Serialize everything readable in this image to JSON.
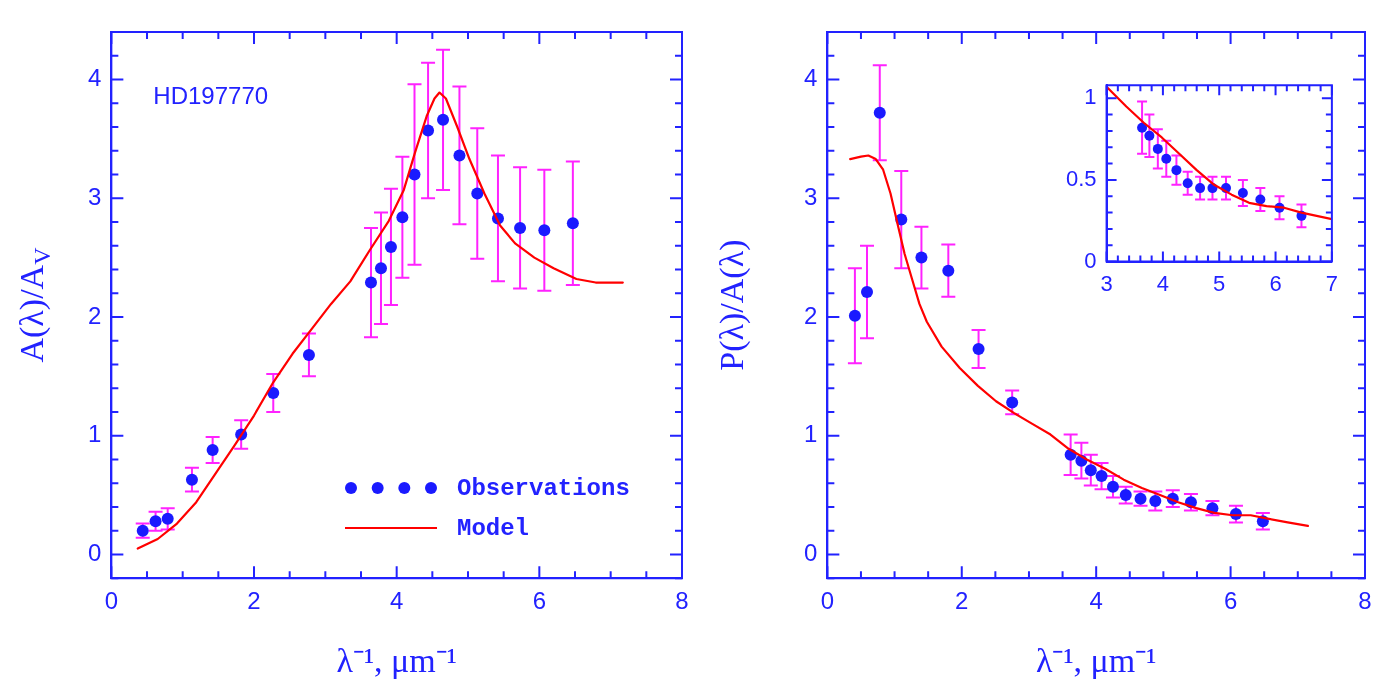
{
  "chart_data": [
    {
      "type": "scatter",
      "xlabel": "λ⁻¹, μm⁻¹",
      "ylabel": "A(λ)/A$_{V}$",
      "annotations": [
        "HD197770"
      ],
      "legend": "bottom right",
      "line_style": "solid",
      "xlim": [
        0,
        8
      ],
      "ylim": [
        -0.2,
        4.4
      ],
      "xticks": [
        0,
        {
          "value": 0.5,
          "label": null
        },
        {
          "value": 1,
          "label": null
        },
        {
          "value": 1.5,
          "label": null
        },
        2,
        {
          "value": 2.5,
          "label": null
        },
        {
          "value": 3,
          "label": null
        },
        {
          "value": 3.5,
          "label": null
        },
        4,
        {
          "value": 4.5,
          "label": null
        },
        {
          "value": 5,
          "label": null
        },
        {
          "value": 5.5,
          "label": null
        },
        6,
        {
          "value": 6.5,
          "label": null
        },
        {
          "value": 7,
          "label": null
        },
        {
          "value": 7.5,
          "label": null
        },
        8
      ],
      "yticks": [
        {
          "value": -0.2,
          "label": null
        },
        0,
        {
          "value": 0.2,
          "label": null
        },
        {
          "value": 0.4,
          "label": null
        },
        {
          "value": 0.6,
          "label": null
        },
        {
          "value": 0.8,
          "label": null
        },
        1,
        {
          "value": 1.2,
          "label": null
        },
        {
          "value": 1.4,
          "label": null
        },
        {
          "value": 1.6,
          "label": null
        },
        {
          "value": 1.8,
          "label": null
        },
        2,
        {
          "value": 2.2,
          "label": null
        },
        {
          "value": 2.4,
          "label": null
        },
        {
          "value": 2.6,
          "label": null
        },
        {
          "value": 2.8,
          "label": null
        },
        3,
        {
          "value": 3.2,
          "label": null
        },
        {
          "value": 3.4,
          "label": null
        },
        {
          "value": 3.6,
          "label": null
        },
        {
          "value": 3.8,
          "label": null
        },
        4,
        {
          "value": 4.2,
          "label": null
        },
        {
          "value": 4.4,
          "label": null
        }
      ],
      "series": [
        {
          "name": "Observations",
          "marker": "circle",
          "color": "#1a1aff",
          "x": [
            0.44,
            0.62,
            0.79,
            1.13,
            1.42,
            1.82,
            2.27,
            2.77,
            3.64,
            3.78,
            3.92,
            4.08,
            4.25,
            4.44,
            4.65,
            4.88,
            5.13,
            5.42,
            5.73,
            6.07,
            6.47
          ],
          "values": [
            0.2,
            0.28,
            0.3,
            0.63,
            0.88,
            1.01,
            1.36,
            1.68,
            2.29,
            2.41,
            2.59,
            2.84,
            3.2,
            3.57,
            3.66,
            3.36,
            3.04,
            2.83,
            2.75,
            2.73,
            2.79
          ],
          "errors": [
            0.06,
            0.08,
            0.09,
            0.1,
            0.11,
            0.12,
            0.16,
            0.18,
            0.46,
            0.47,
            0.49,
            0.51,
            0.76,
            0.57,
            0.59,
            0.58,
            0.55,
            0.53,
            0.51,
            0.51,
            0.52
          ]
        },
        {
          "name": "Model",
          "type": "line",
          "marker": "none",
          "color": "#ff0000",
          "x": [
            0.37,
            0.65,
            0.92,
            1.19,
            1.46,
            1.73,
            2.0,
            2.27,
            2.54,
            2.81,
            3.08,
            3.35,
            3.62,
            3.89,
            4.1,
            4.26,
            4.42,
            4.53,
            4.6,
            4.69,
            4.85,
            5.02,
            5.23,
            5.45,
            5.66,
            5.93,
            6.2,
            6.52,
            6.79,
            7.17
          ],
          "values": [
            0.05,
            0.13,
            0.26,
            0.44,
            0.68,
            0.92,
            1.17,
            1.45,
            1.69,
            1.9,
            2.11,
            2.3,
            2.56,
            2.81,
            3.07,
            3.39,
            3.69,
            3.84,
            3.89,
            3.84,
            3.6,
            3.33,
            3.04,
            2.77,
            2.62,
            2.5,
            2.41,
            2.32,
            2.29,
            2.29
          ]
        }
      ]
    },
    {
      "type": "scatter",
      "xlabel": "λ⁻¹, μm⁻¹",
      "ylabel": "P(λ)/A(λ)",
      "line_style": "solid",
      "xlim": [
        0,
        8
      ],
      "ylim": [
        -0.2,
        4.4
      ],
      "xticks": [
        0,
        {
          "value": 0.5,
          "label": null
        },
        {
          "value": 1,
          "label": null
        },
        {
          "value": 1.5,
          "label": null
        },
        2,
        {
          "value": 2.5,
          "label": null
        },
        {
          "value": 3,
          "label": null
        },
        {
          "value": 3.5,
          "label": null
        },
        4,
        {
          "value": 4.5,
          "label": null
        },
        {
          "value": 5,
          "label": null
        },
        {
          "value": 5.5,
          "label": null
        },
        6,
        {
          "value": 6.5,
          "label": null
        },
        {
          "value": 7,
          "label": null
        },
        {
          "value": 7.5,
          "label": null
        },
        8
      ],
      "yticks": [
        {
          "value": -0.2,
          "label": null
        },
        0,
        {
          "value": 0.2,
          "label": null
        },
        {
          "value": 0.4,
          "label": null
        },
        {
          "value": 0.6,
          "label": null
        },
        {
          "value": 0.8,
          "label": null
        },
        1,
        {
          "value": 1.2,
          "label": null
        },
        {
          "value": 1.4,
          "label": null
        },
        {
          "value": 1.6,
          "label": null
        },
        {
          "value": 1.8,
          "label": null
        },
        2,
        {
          "value": 2.2,
          "label": null
        },
        {
          "value": 2.4,
          "label": null
        },
        {
          "value": 2.6,
          "label": null
        },
        {
          "value": 2.8,
          "label": null
        },
        3,
        {
          "value": 3.2,
          "label": null
        },
        {
          "value": 3.4,
          "label": null
        },
        {
          "value": 3.6,
          "label": null
        },
        {
          "value": 3.8,
          "label": null
        },
        4,
        {
          "value": 4.2,
          "label": null
        },
        {
          "value": 4.4,
          "label": null
        }
      ],
      "series": [
        {
          "marker": "circle",
          "color": "#1a1aff",
          "x": [
            0.41,
            0.59,
            0.78,
            1.1,
            1.4,
            1.8,
            2.25,
            2.75,
            3.62,
            3.78,
            3.92,
            4.08,
            4.25,
            4.44,
            4.66,
            4.88,
            5.14,
            5.41,
            5.73,
            6.08,
            6.48
          ],
          "values": [
            2.01,
            2.21,
            3.72,
            2.82,
            2.5,
            2.39,
            1.73,
            1.28,
            0.84,
            0.79,
            0.71,
            0.66,
            0.57,
            0.5,
            0.47,
            0.45,
            0.47,
            0.44,
            0.39,
            0.34,
            0.28
          ],
          "errors": [
            0.4,
            0.39,
            0.4,
            0.41,
            0.26,
            0.22,
            0.16,
            0.1,
            0.17,
            0.15,
            0.13,
            0.11,
            0.09,
            0.07,
            0.06,
            0.08,
            0.07,
            0.07,
            0.06,
            0.07,
            0.07
          ]
        },
        {
          "type": "line",
          "marker": "none",
          "color": "#ff0000",
          "x": [
            0.34,
            0.5,
            0.61,
            0.72,
            0.83,
            0.94,
            1.05,
            1.15,
            1.26,
            1.37,
            1.48,
            1.7,
            1.97,
            2.24,
            2.51,
            2.78,
            3.05,
            3.32,
            3.59,
            3.86,
            4.14,
            4.41,
            4.68,
            4.95,
            5.22,
            5.49,
            5.76,
            6.03,
            6.3,
            6.57,
            6.85,
            7.15
          ],
          "values": [
            3.33,
            3.35,
            3.36,
            3.33,
            3.24,
            3.04,
            2.77,
            2.53,
            2.32,
            2.11,
            1.96,
            1.75,
            1.57,
            1.42,
            1.29,
            1.19,
            1.1,
            1.01,
            0.89,
            0.8,
            0.72,
            0.63,
            0.56,
            0.5,
            0.44,
            0.39,
            0.35,
            0.33,
            0.33,
            0.3,
            0.27,
            0.24
          ]
        }
      ]
    },
    {
      "type": "scatter",
      "line_style": "solid",
      "xlim": [
        3,
        7
      ],
      "ylim": [
        0,
        1.08
      ],
      "xticks": [
        3,
        {
          "value": 3.2,
          "label": null
        },
        {
          "value": 3.4,
          "label": null
        },
        {
          "value": 3.6,
          "label": null
        },
        {
          "value": 3.8,
          "label": null
        },
        4,
        {
          "value": 4.2,
          "label": null
        },
        {
          "value": 4.4,
          "label": null
        },
        {
          "value": 4.6,
          "label": null
        },
        {
          "value": 4.8,
          "label": null
        },
        5,
        {
          "value": 5.2,
          "label": null
        },
        {
          "value": 5.4,
          "label": null
        },
        {
          "value": 5.6,
          "label": null
        },
        {
          "value": 5.8,
          "label": null
        },
        6,
        {
          "value": 6.2,
          "label": null
        },
        {
          "value": 6.4,
          "label": null
        },
        {
          "value": 6.6,
          "label": null
        },
        {
          "value": 6.8,
          "label": null
        },
        7
      ],
      "yticks": [
        0,
        {
          "value": 0.1,
          "label": null
        },
        {
          "value": 0.2,
          "label": null
        },
        {
          "value": 0.3,
          "label": null
        },
        {
          "value": 0.4,
          "label": null
        },
        0.5,
        {
          "value": 0.6,
          "label": null
        },
        {
          "value": 0.7,
          "label": null
        },
        {
          "value": 0.8,
          "label": null
        },
        {
          "value": 0.9,
          "label": null
        },
        1
      ],
      "series": [
        {
          "marker": "circle",
          "color": "#1a1aff",
          "x": [
            3.63,
            3.76,
            3.91,
            4.06,
            4.24,
            4.44,
            4.66,
            4.88,
            5.12,
            5.42,
            5.73,
            6.07,
            6.46
          ],
          "values": [
            0.82,
            0.77,
            0.69,
            0.63,
            0.56,
            0.48,
            0.45,
            0.45,
            0.45,
            0.42,
            0.38,
            0.33,
            0.28
          ],
          "errors": [
            0.16,
            0.13,
            0.12,
            0.11,
            0.09,
            0.07,
            0.07,
            0.07,
            0.07,
            0.08,
            0.07,
            0.07,
            0.07
          ]
        },
        {
          "type": "line",
          "marker": "none",
          "color": "#ff0000",
          "x": [
            3.0,
            3.35,
            3.66,
            3.98,
            4.29,
            4.6,
            4.91,
            5.22,
            5.53,
            5.84,
            6.15,
            6.46,
            7.0
          ],
          "values": [
            1.07,
            0.95,
            0.85,
            0.76,
            0.66,
            0.56,
            0.47,
            0.41,
            0.36,
            0.34,
            0.33,
            0.3,
            0.26
          ]
        }
      ]
    }
  ]
}
